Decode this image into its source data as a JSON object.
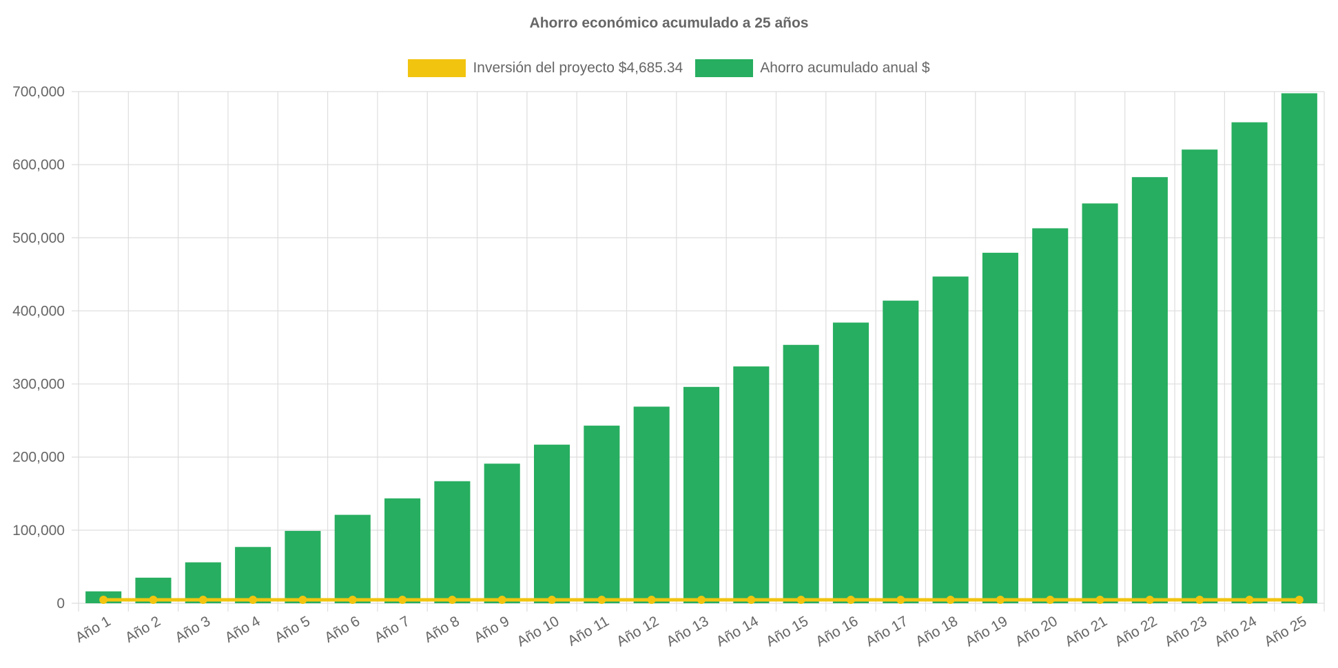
{
  "chart_data": {
    "type": "bar",
    "title": "Ahorro económico acumulado a 25 años",
    "categories": [
      "Año 1",
      "Año 2",
      "Año 3",
      "Año 4",
      "Año 5",
      "Año 6",
      "Año 7",
      "Año 8",
      "Año 9",
      "Año 10",
      "Año 11",
      "Año 12",
      "Año 13",
      "Año 14",
      "Año 15",
      "Año 16",
      "Año 17",
      "Año 18",
      "Año 19",
      "Año 20",
      "Año 21",
      "Año 22",
      "Año 23",
      "Año 24",
      "Año 25"
    ],
    "series": [
      {
        "name": "Inversión del proyecto $4,685.34",
        "type": "line",
        "color": "#f1c40f",
        "values": [
          4685.34,
          4685.34,
          4685.34,
          4685.34,
          4685.34,
          4685.34,
          4685.34,
          4685.34,
          4685.34,
          4685.34,
          4685.34,
          4685.34,
          4685.34,
          4685.34,
          4685.34,
          4685.34,
          4685.34,
          4685.34,
          4685.34,
          4685.34,
          4685.34,
          4685.34,
          4685.34,
          4685.34,
          4685.34
        ]
      },
      {
        "name": "Ahorro acumulado anual $",
        "type": "bar",
        "color": "#27ae60",
        "values": [
          16300,
          35000,
          56000,
          77000,
          99000,
          121000,
          143500,
          167000,
          191000,
          217000,
          243000,
          269000,
          296000,
          324000,
          353500,
          384000,
          414000,
          447000,
          479500,
          513000,
          547000,
          583000,
          620700,
          658000,
          697700
        ]
      }
    ],
    "ylim": [
      0,
      700000
    ],
    "yticks": [
      "0",
      "100,000",
      "200,000",
      "300,000",
      "400,000",
      "500,000",
      "600,000",
      "700,000"
    ],
    "grid": true,
    "legend": "top-center",
    "xlabel": "",
    "ylabel": ""
  }
}
